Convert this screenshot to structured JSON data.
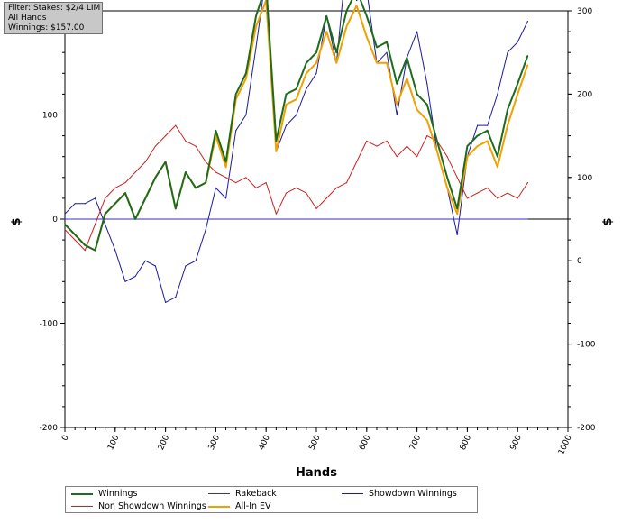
{
  "filter": {
    "line1": "Filter: Stakes: $2/4 LIM",
    "line2": "All Hands",
    "line3": "Winnings: $157.00"
  },
  "chart_data": {
    "type": "line",
    "xlabel": "Hands",
    "ylabel": "$",
    "xlim": [
      0,
      1000
    ],
    "ylim": [
      -200,
      200
    ],
    "right_ylim": [
      -200,
      300
    ],
    "x_ticks": [
      "0",
      "100",
      "200",
      "300",
      "400",
      "500",
      "600",
      "700",
      "800",
      "900",
      "1000"
    ],
    "y_ticks": [
      "-200",
      "-100",
      "0",
      "100",
      "200"
    ],
    "right_y_ticks": [
      "-200",
      "-100",
      "0",
      "100",
      "200",
      "300"
    ],
    "grid": true,
    "legend_placement": "bottom",
    "series": [
      {
        "name": "Winnings",
        "color": "#1e6b1e",
        "width": 2,
        "x": [
          0,
          20,
          40,
          60,
          80,
          100,
          120,
          140,
          160,
          180,
          200,
          220,
          240,
          260,
          280,
          300,
          320,
          340,
          360,
          380,
          400,
          420,
          440,
          460,
          480,
          500,
          520,
          540,
          560,
          580,
          600,
          620,
          640,
          660,
          680,
          700,
          720,
          740,
          760,
          780,
          800,
          820,
          840,
          860,
          880,
          900,
          920
        ],
        "y": [
          -5,
          -15,
          -25,
          -30,
          5,
          15,
          25,
          0,
          20,
          40,
          55,
          10,
          45,
          30,
          35,
          85,
          55,
          120,
          140,
          195,
          225,
          75,
          120,
          125,
          150,
          160,
          195,
          160,
          200,
          220,
          195,
          165,
          170,
          130,
          155,
          120,
          110,
          75,
          40,
          10,
          70,
          80,
          85,
          60,
          105,
          130,
          157
        ]
      },
      {
        "name": "Non Showdown Winnings",
        "color": "#cc2222",
        "width": 1,
        "x": [
          0,
          20,
          40,
          60,
          80,
          100,
          120,
          140,
          160,
          180,
          200,
          220,
          240,
          260,
          280,
          300,
          320,
          340,
          360,
          380,
          400,
          420,
          440,
          460,
          480,
          500,
          520,
          540,
          560,
          580,
          600,
          620,
          640,
          660,
          680,
          700,
          720,
          740,
          760,
          780,
          800,
          820,
          840,
          860,
          880,
          900,
          920
        ],
        "y": [
          -10,
          -20,
          -30,
          -5,
          20,
          30,
          35,
          45,
          55,
          70,
          80,
          90,
          75,
          70,
          55,
          45,
          40,
          35,
          40,
          30,
          35,
          5,
          25,
          30,
          25,
          10,
          20,
          30,
          35,
          55,
          75,
          70,
          75,
          60,
          70,
          60,
          80,
          75,
          60,
          40,
          20,
          25,
          30,
          20,
          25,
          20,
          35
        ]
      },
      {
        "name": "Rakeback",
        "color": "#3030c0",
        "width": 1,
        "x": [
          0,
          920
        ],
        "y": [
          0,
          0
        ]
      },
      {
        "name": "All-In EV",
        "color": "#f0a000",
        "width": 2,
        "x": [
          0,
          20,
          40,
          60,
          80,
          100,
          120,
          140,
          160,
          180,
          200,
          220,
          240,
          260,
          280,
          300,
          320,
          340,
          360,
          380,
          400,
          420,
          440,
          460,
          480,
          500,
          520,
          540,
          560,
          580,
          600,
          620,
          640,
          660,
          680,
          700,
          720,
          740,
          760,
          780,
          800,
          820,
          840,
          860,
          880,
          900,
          920
        ],
        "y": [
          -5,
          -15,
          -25,
          -30,
          5,
          15,
          25,
          0,
          20,
          40,
          55,
          10,
          45,
          30,
          35,
          80,
          50,
          115,
          135,
          185,
          210,
          65,
          110,
          115,
          140,
          150,
          180,
          150,
          185,
          205,
          175,
          150,
          150,
          110,
          135,
          105,
          95,
          65,
          30,
          5,
          60,
          70,
          75,
          50,
          90,
          120,
          148
        ]
      },
      {
        "name": "Showdown Winnings",
        "color": "#1a1aa0",
        "width": 1,
        "x": [
          0,
          20,
          40,
          60,
          80,
          100,
          120,
          140,
          160,
          180,
          200,
          220,
          240,
          260,
          280,
          300,
          320,
          340,
          360,
          380,
          400,
          420,
          440,
          460,
          480,
          500,
          520,
          540,
          560,
          580,
          600,
          620,
          640,
          660,
          680,
          700,
          720,
          740,
          760,
          780,
          800,
          820,
          840,
          860,
          880,
          900,
          920
        ],
        "y": [
          5,
          15,
          15,
          20,
          -5,
          -30,
          -60,
          -55,
          -40,
          -45,
          -80,
          -75,
          -45,
          -40,
          -10,
          30,
          20,
          85,
          100,
          165,
          235,
          65,
          90,
          100,
          125,
          140,
          195,
          150,
          250,
          210,
          220,
          150,
          160,
          100,
          155,
          180,
          130,
          65,
          30,
          -15,
          60,
          90,
          90,
          120,
          160,
          170,
          190
        ]
      }
    ]
  }
}
